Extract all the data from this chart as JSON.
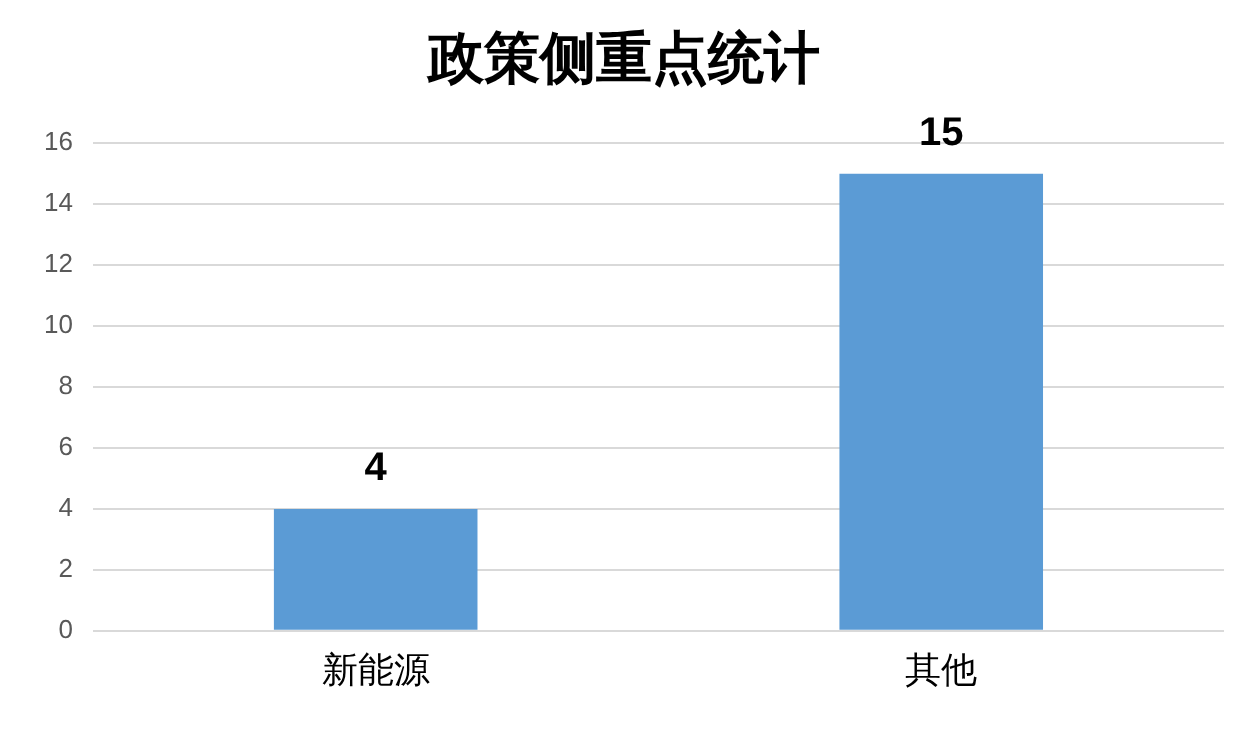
{
  "chart_data": {
    "type": "bar",
    "title": "政策侧重点统计",
    "categories": [
      "新能源",
      "其他"
    ],
    "values": [
      4,
      15
    ],
    "color": "#5b9bd5",
    "ylim": [
      0,
      16
    ],
    "yticks": [
      0,
      2,
      4,
      6,
      8,
      10,
      12,
      14,
      16
    ],
    "grid": "y",
    "data_labels": true
  }
}
